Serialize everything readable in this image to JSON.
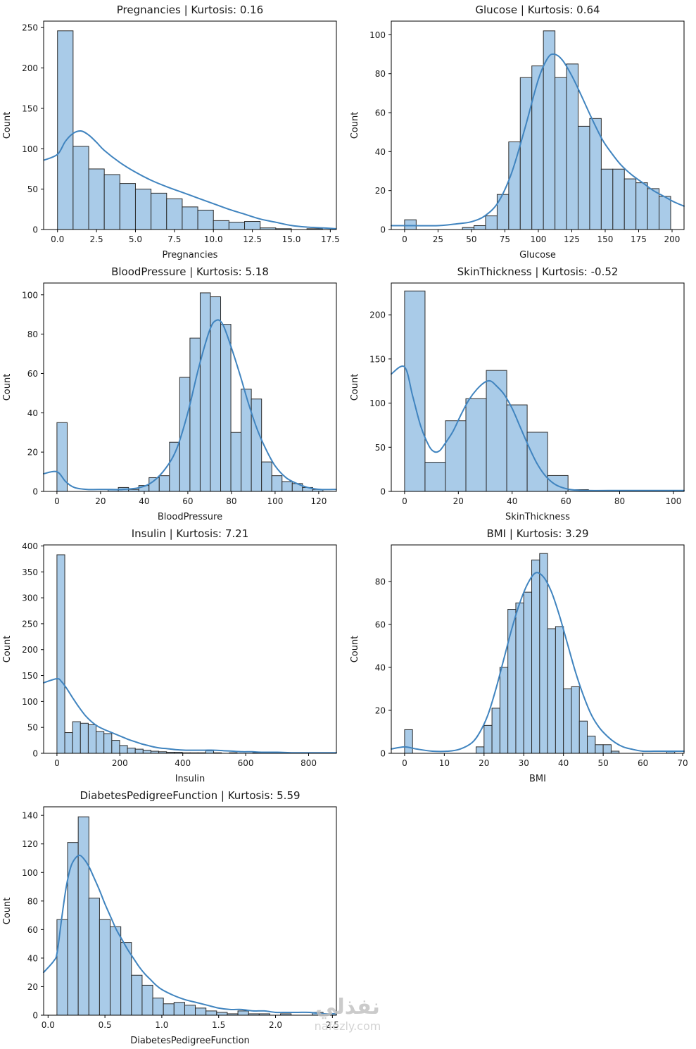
{
  "watermark": {
    "brand": "نفذلي",
    "site": "nafezly.com"
  },
  "style": {
    "bar_fill": "#a9cbe8",
    "bar_edge": "#2b2b2b",
    "kde_color": "#4084bf",
    "axis_color": "#000000",
    "text_color": "#1a1a1a",
    "background": "#ffffff"
  },
  "chart_data": [
    {
      "type": "histogram",
      "title": "Pregnancies | Kurtosis: 0.16",
      "xlabel": "Pregnancies",
      "ylabel": "Count",
      "xlim": [
        -0.89,
        17.89
      ],
      "ylim": [
        0,
        258
      ],
      "xticks": {
        "values": [
          0,
          2.5,
          5,
          7.5,
          10,
          12.5,
          15,
          17.5
        ],
        "labels": [
          "0.0",
          "2.5",
          "5.0",
          "7.5",
          "10.0",
          "12.5",
          "15.0",
          "17.5"
        ]
      },
      "yticks": {
        "values": [
          0,
          50,
          100,
          150,
          200,
          250
        ],
        "labels": [
          "0",
          "50",
          "100",
          "150",
          "200",
          "250"
        ]
      },
      "hist": {
        "start": 0,
        "bin_width": 1.0,
        "counts": [
          246,
          103,
          75,
          68,
          57,
          50,
          45,
          38,
          28,
          24,
          11,
          9,
          10,
          2,
          1,
          0,
          1
        ]
      },
      "kde": [
        [
          -0.85,
          86
        ],
        [
          0,
          93
        ],
        [
          0.5,
          109
        ],
        [
          1,
          119
        ],
        [
          1.5,
          122
        ],
        [
          2,
          117
        ],
        [
          2.5,
          108
        ],
        [
          3,
          98
        ],
        [
          4,
          83
        ],
        [
          5,
          71
        ],
        [
          6,
          61
        ],
        [
          7,
          53
        ],
        [
          8,
          46
        ],
        [
          9,
          39
        ],
        [
          10,
          32
        ],
        [
          11,
          25
        ],
        [
          12,
          19
        ],
        [
          13,
          13
        ],
        [
          14,
          9
        ],
        [
          15,
          5
        ],
        [
          16,
          3
        ],
        [
          17,
          2
        ],
        [
          17.85,
          1
        ]
      ]
    },
    {
      "type": "histogram",
      "title": "Glucose | Kurtosis: 0.64",
      "xlabel": "Glucose",
      "ylabel": "Count",
      "xlim": [
        -9.95,
        208.95
      ],
      "ylim": [
        0,
        107
      ],
      "xticks": {
        "values": [
          0,
          25,
          50,
          75,
          100,
          125,
          150,
          175,
          200
        ],
        "labels": [
          "0",
          "25",
          "50",
          "75",
          "100",
          "125",
          "150",
          "175",
          "200"
        ]
      },
      "yticks": {
        "values": [
          0,
          20,
          40,
          60,
          80,
          100
        ],
        "labels": [
          "0",
          "20",
          "40",
          "60",
          "80",
          "100"
        ]
      },
      "hist": {
        "start": 0,
        "bin_width": 8.65,
        "counts": [
          5,
          0,
          0,
          0,
          0,
          1,
          2,
          7,
          18,
          45,
          78,
          84,
          102,
          78,
          85,
          53,
          57,
          31,
          31,
          26,
          24,
          21,
          17
        ]
      },
      "kde": [
        [
          -9.95,
          2
        ],
        [
          0,
          2
        ],
        [
          25,
          2
        ],
        [
          40,
          3
        ],
        [
          50,
          4
        ],
        [
          60,
          7
        ],
        [
          70,
          14
        ],
        [
          80,
          29
        ],
        [
          90,
          52
        ],
        [
          100,
          77
        ],
        [
          107,
          88
        ],
        [
          112,
          90
        ],
        [
          118,
          87
        ],
        [
          125,
          79
        ],
        [
          132,
          69
        ],
        [
          140,
          57
        ],
        [
          148,
          46
        ],
        [
          155,
          39
        ],
        [
          162,
          33
        ],
        [
          170,
          28
        ],
        [
          178,
          24
        ],
        [
          186,
          20
        ],
        [
          194,
          17
        ],
        [
          202,
          14
        ],
        [
          208.95,
          12
        ]
      ]
    },
    {
      "type": "histogram",
      "title": "BloodPressure | Kurtosis: 5.18",
      "xlabel": "BloodPressure",
      "ylabel": "Count",
      "xlim": [
        -6.1,
        128.1
      ],
      "ylim": [
        0,
        106
      ],
      "xticks": {
        "values": [
          0,
          20,
          40,
          60,
          80,
          100,
          120
        ],
        "labels": [
          "0",
          "20",
          "40",
          "60",
          "80",
          "100",
          "120"
        ]
      },
      "yticks": {
        "values": [
          0,
          20,
          40,
          60,
          80,
          100
        ],
        "labels": [
          "0",
          "20",
          "40",
          "60",
          "80",
          "100"
        ]
      },
      "hist": {
        "start": 0,
        "bin_width": 4.69,
        "counts": [
          35,
          0,
          0,
          0,
          0,
          1,
          2,
          1,
          3,
          7,
          8,
          25,
          58,
          78,
          101,
          99,
          85,
          30,
          52,
          47,
          15,
          8,
          5,
          4,
          2,
          1
        ]
      },
      "kde": [
        [
          -6.1,
          9
        ],
        [
          0,
          10
        ],
        [
          4,
          5
        ],
        [
          8,
          2
        ],
        [
          14,
          1
        ],
        [
          22,
          1
        ],
        [
          30,
          1
        ],
        [
          38,
          2
        ],
        [
          44,
          5
        ],
        [
          50,
          12
        ],
        [
          55,
          22
        ],
        [
          60,
          40
        ],
        [
          65,
          63
        ],
        [
          70,
          82
        ],
        [
          73,
          87
        ],
        [
          76,
          85
        ],
        [
          80,
          73
        ],
        [
          84,
          59
        ],
        [
          88,
          44
        ],
        [
          92,
          31
        ],
        [
          96,
          21
        ],
        [
          100,
          13
        ],
        [
          105,
          7
        ],
        [
          110,
          4
        ],
        [
          115,
          2
        ],
        [
          121,
          1
        ],
        [
          128,
          1
        ]
      ]
    },
    {
      "type": "histogram",
      "title": "SkinThickness | Kurtosis: -0.52",
      "xlabel": "SkinThickness",
      "ylabel": "Count",
      "xlim": [
        -4.95,
        103.95
      ],
      "ylim": [
        0,
        236
      ],
      "xticks": {
        "values": [
          0,
          20,
          40,
          60,
          80,
          100
        ],
        "labels": [
          "0",
          "20",
          "40",
          "60",
          "80",
          "100"
        ]
      },
      "yticks": {
        "values": [
          0,
          50,
          100,
          150,
          200
        ],
        "labels": [
          "0",
          "50",
          "100",
          "150",
          "200"
        ]
      },
      "hist": {
        "start": 0,
        "bin_width": 7.6,
        "counts": [
          227,
          33,
          80,
          105,
          137,
          98,
          67,
          18,
          2,
          1,
          0,
          0,
          1
        ]
      },
      "kde": [
        [
          -4.95,
          133
        ],
        [
          0,
          141
        ],
        [
          3,
          108
        ],
        [
          6,
          74
        ],
        [
          9,
          52
        ],
        [
          11,
          45
        ],
        [
          13,
          46
        ],
        [
          15,
          54
        ],
        [
          18,
          68
        ],
        [
          21,
          87
        ],
        [
          24,
          104
        ],
        [
          27,
          116
        ],
        [
          30,
          124
        ],
        [
          32,
          125
        ],
        [
          34,
          120
        ],
        [
          37,
          110
        ],
        [
          40,
          94
        ],
        [
          43,
          73
        ],
        [
          46,
          52
        ],
        [
          49,
          33
        ],
        [
          52,
          19
        ],
        [
          55,
          10
        ],
        [
          58,
          5
        ],
        [
          62,
          2
        ],
        [
          68,
          1
        ],
        [
          80,
          1
        ],
        [
          92,
          1
        ],
        [
          99,
          1
        ],
        [
          103.95,
          1
        ]
      ]
    },
    {
      "type": "histogram",
      "title": "Insulin | Kurtosis: 7.21",
      "xlabel": "Insulin",
      "ylabel": "Count",
      "xlim": [
        -42.3,
        888.3
      ],
      "ylim": [
        0,
        402
      ],
      "xticks": {
        "values": [
          0,
          200,
          400,
          600,
          800
        ],
        "labels": [
          "0",
          "200",
          "400",
          "600",
          "800"
        ]
      },
      "yticks": {
        "values": [
          0,
          50,
          100,
          150,
          200,
          250,
          300,
          350,
          400
        ],
        "labels": [
          "0",
          "50",
          "100",
          "150",
          "200",
          "250",
          "300",
          "350",
          "400"
        ]
      },
      "hist": {
        "start": 0,
        "bin_width": 24.9,
        "counts": [
          383,
          40,
          61,
          58,
          55,
          42,
          38,
          25,
          15,
          10,
          8,
          6,
          4,
          3,
          2,
          2,
          1,
          1,
          1,
          5,
          1,
          0,
          1,
          0,
          0,
          1,
          0,
          0,
          0,
          0,
          0,
          0,
          0,
          1
        ]
      },
      "kde": [
        [
          -42.3,
          136
        ],
        [
          0,
          144
        ],
        [
          15,
          138
        ],
        [
          30,
          126
        ],
        [
          50,
          107
        ],
        [
          70,
          89
        ],
        [
          90,
          73
        ],
        [
          110,
          61
        ],
        [
          130,
          52
        ],
        [
          150,
          46
        ],
        [
          170,
          41
        ],
        [
          190,
          36
        ],
        [
          210,
          31
        ],
        [
          230,
          26
        ],
        [
          250,
          22
        ],
        [
          270,
          18
        ],
        [
          290,
          15
        ],
        [
          310,
          12
        ],
        [
          330,
          10
        ],
        [
          350,
          9
        ],
        [
          380,
          7
        ],
        [
          410,
          6
        ],
        [
          440,
          6
        ],
        [
          470,
          6
        ],
        [
          500,
          6
        ],
        [
          530,
          5
        ],
        [
          560,
          4
        ],
        [
          590,
          3
        ],
        [
          620,
          3
        ],
        [
          650,
          2
        ],
        [
          700,
          2
        ],
        [
          750,
          1
        ],
        [
          800,
          1
        ],
        [
          846,
          1
        ],
        [
          888.3,
          1
        ]
      ]
    },
    {
      "type": "histogram",
      "title": "BMI | Kurtosis: 3.29",
      "xlabel": "BMI",
      "ylabel": "Count",
      "xlim": [
        -3.35,
        70.35
      ],
      "ylim": [
        0,
        97
      ],
      "xticks": {
        "values": [
          0,
          10,
          20,
          30,
          40,
          50,
          60,
          70
        ],
        "labels": [
          "0",
          "10",
          "20",
          "30",
          "40",
          "50",
          "60",
          "70"
        ]
      },
      "yticks": {
        "values": [
          0,
          20,
          40,
          60,
          80
        ],
        "labels": [
          "0",
          "20",
          "40",
          "60",
          "80"
        ]
      },
      "hist": {
        "start": 0,
        "bin_width": 2.0,
        "counts": [
          11,
          0,
          0,
          0,
          0,
          0,
          0,
          0,
          0,
          3,
          13,
          21,
          40,
          67,
          70,
          75,
          90,
          93,
          58,
          59,
          30,
          31,
          15,
          8,
          4,
          4,
          1,
          0,
          0,
          0,
          0,
          0,
          0,
          1
        ]
      },
      "kde": [
        [
          -3.35,
          2
        ],
        [
          0,
          3
        ],
        [
          3,
          2
        ],
        [
          7,
          1
        ],
        [
          11,
          1
        ],
        [
          14,
          2
        ],
        [
          17,
          5
        ],
        [
          19,
          10
        ],
        [
          21,
          18
        ],
        [
          23,
          30
        ],
        [
          25,
          44
        ],
        [
          27,
          58
        ],
        [
          29,
          70
        ],
        [
          31,
          79
        ],
        [
          33,
          84
        ],
        [
          35,
          82
        ],
        [
          37,
          75
        ],
        [
          39,
          64
        ],
        [
          41,
          51
        ],
        [
          43,
          38
        ],
        [
          45,
          27
        ],
        [
          47,
          18
        ],
        [
          49,
          12
        ],
        [
          51,
          8
        ],
        [
          53,
          5
        ],
        [
          55,
          3
        ],
        [
          57,
          2
        ],
        [
          60,
          1
        ],
        [
          64,
          1
        ],
        [
          67,
          1
        ],
        [
          70.35,
          1
        ]
      ]
    },
    {
      "type": "histogram",
      "title": "DiabetesPedigreeFunction | Kurtosis: 5.59",
      "xlabel": "DiabetesPedigreeFunction",
      "ylabel": "Count",
      "xlim": [
        -0.039,
        2.535
      ],
      "ylim": [
        0,
        146
      ],
      "xticks": {
        "values": [
          0,
          0.5,
          1.0,
          1.5,
          2.0,
          2.5
        ],
        "labels": [
          "0.0",
          "0.5",
          "1.0",
          "1.5",
          "2.0",
          "2.5"
        ]
      },
      "yticks": {
        "values": [
          0,
          20,
          40,
          60,
          80,
          100,
          120,
          140
        ],
        "labels": [
          "0",
          "20",
          "40",
          "60",
          "80",
          "100",
          "120",
          "140"
        ]
      },
      "hist": {
        "start": 0.078,
        "bin_width": 0.0936,
        "counts": [
          67,
          121,
          139,
          82,
          67,
          62,
          51,
          28,
          21,
          12,
          8,
          9,
          7,
          5,
          3,
          2,
          1,
          3,
          1,
          1,
          0,
          1,
          0,
          0,
          2
        ]
      },
      "kde": [
        [
          -0.039,
          30
        ],
        [
          0.05,
          38
        ],
        [
          0.08,
          44
        ],
        [
          0.12,
          68
        ],
        [
          0.16,
          90
        ],
        [
          0.2,
          104
        ],
        [
          0.24,
          110
        ],
        [
          0.28,
          112
        ],
        [
          0.32,
          109
        ],
        [
          0.36,
          104
        ],
        [
          0.4,
          97
        ],
        [
          0.45,
          88
        ],
        [
          0.5,
          78
        ],
        [
          0.55,
          69
        ],
        [
          0.6,
          60
        ],
        [
          0.65,
          53
        ],
        [
          0.7,
          46
        ],
        [
          0.75,
          40
        ],
        [
          0.8,
          34
        ],
        [
          0.85,
          29
        ],
        [
          0.9,
          25
        ],
        [
          0.95,
          21
        ],
        [
          1.0,
          18
        ],
        [
          1.1,
          14
        ],
        [
          1.2,
          11
        ],
        [
          1.3,
          9
        ],
        [
          1.4,
          7
        ],
        [
          1.5,
          5
        ],
        [
          1.6,
          4
        ],
        [
          1.7,
          4
        ],
        [
          1.8,
          3
        ],
        [
          1.9,
          3
        ],
        [
          2.0,
          2
        ],
        [
          2.1,
          2
        ],
        [
          2.2,
          2
        ],
        [
          2.3,
          2
        ],
        [
          2.42,
          1
        ],
        [
          2.535,
          1
        ]
      ]
    }
  ]
}
